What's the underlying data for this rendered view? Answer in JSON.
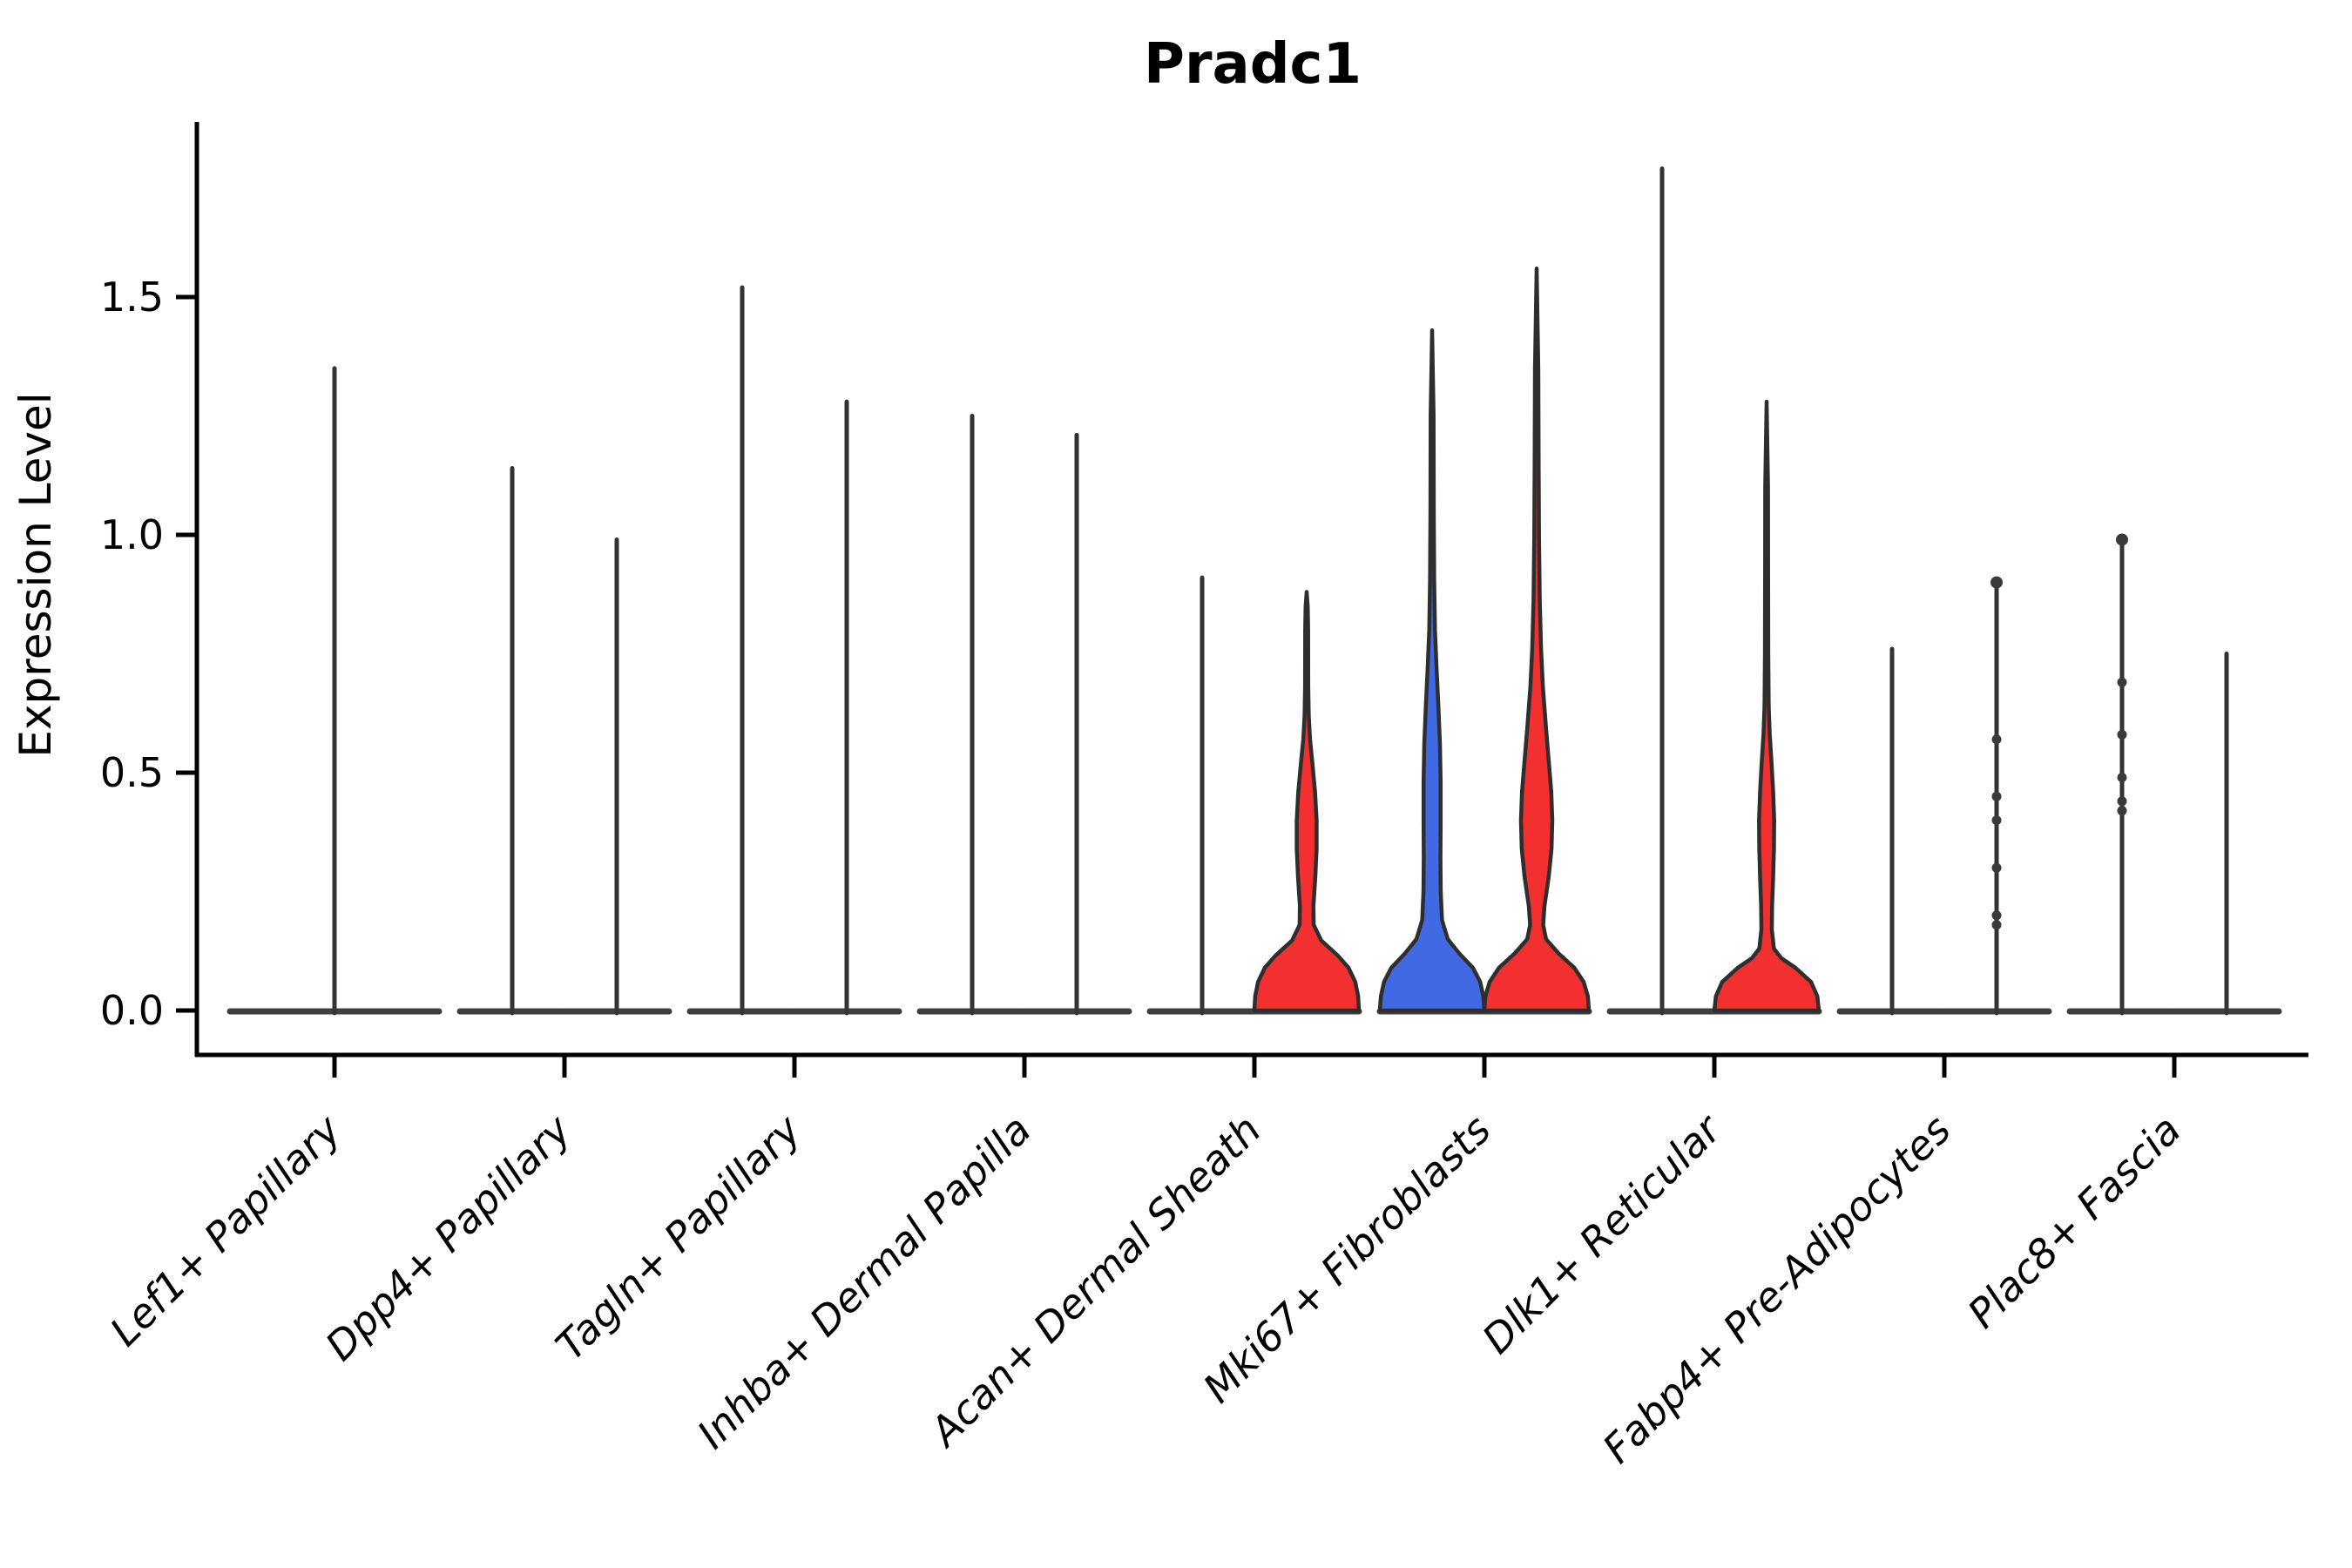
{
  "page": {
    "background": "#FFFFFF"
  },
  "chart_data": {
    "type": "violin",
    "title": "Pradc1",
    "ylabel": "Expression Level",
    "xlabel": "",
    "grid": false,
    "legend_position": "none",
    "ytick_labels": [
      "0.0",
      "0.5",
      "1.0",
      "1.5"
    ],
    "ytick_values": [
      0,
      0.5,
      1.0,
      1.5
    ],
    "ylim": [
      -0.09,
      1.87
    ],
    "categories": [
      "Lef1+ Papillary",
      "Dpp4+ Papillary",
      "Tagln+ Papillary",
      "Inhba+ Dermal Papilla",
      "Acan+ Dermal Sheath",
      "Mki67+ Fibroblasts",
      "Dlk1+ Reticular",
      "Fabp4+ Pre-Adipocytes",
      "Plac8+ Fascia"
    ],
    "colors": {
      "red_fill": "#F23030",
      "blue_fill": "#4169E1",
      "violin_edge": "#2E2E2E",
      "spike_line": "#333333",
      "base_line": "#3F3F3F",
      "axis": "#000000",
      "point": "#3A3A3A"
    },
    "violins": [
      {
        "category": "Lef1+ Papillary",
        "side": "center",
        "style": "spike",
        "max": 1.35
      },
      {
        "category": "Dpp4+ Papillary",
        "side": "left",
        "style": "spike",
        "max": 1.14
      },
      {
        "category": "Dpp4+ Papillary",
        "side": "right",
        "style": "spike",
        "max": 0.99
      },
      {
        "category": "Tagln+ Papillary",
        "side": "left",
        "style": "spike",
        "max": 1.52
      },
      {
        "category": "Tagln+ Papillary",
        "side": "right",
        "style": "spike",
        "max": 1.28
      },
      {
        "category": "Inhba+ Dermal Papilla",
        "side": "left",
        "style": "spike",
        "max": 1.25
      },
      {
        "category": "Inhba+ Dermal Papilla",
        "side": "right",
        "style": "spike",
        "max": 1.21
      },
      {
        "category": "Acan+ Dermal Sheath",
        "side": "left",
        "style": "spike",
        "max": 0.91
      },
      {
        "category": "Acan+ Dermal Sheath",
        "side": "right",
        "style": "filled",
        "color": "red",
        "max": 0.88,
        "profile": [
          [
            0,
            1.0
          ],
          [
            0.03,
            0.985
          ],
          [
            0.06,
            0.93
          ],
          [
            0.09,
            0.8
          ],
          [
            0.115,
            0.6
          ],
          [
            0.147,
            0.28
          ],
          [
            0.18,
            0.135
          ],
          [
            0.22,
            0.13
          ],
          [
            0.28,
            0.165
          ],
          [
            0.34,
            0.19
          ],
          [
            0.4,
            0.19
          ],
          [
            0.46,
            0.16
          ],
          [
            0.52,
            0.11
          ],
          [
            0.57,
            0.065
          ],
          [
            0.62,
            0.04
          ],
          [
            0.68,
            0.03
          ],
          [
            0.8,
            0.028
          ],
          [
            0.85,
            0.02
          ],
          [
            0.88,
            0
          ]
        ]
      },
      {
        "category": "Mki67+ Fibroblasts",
        "side": "left",
        "style": "filled",
        "color": "blue",
        "max": 1.43,
        "profile": [
          [
            0,
            1.0
          ],
          [
            0.03,
            0.98
          ],
          [
            0.06,
            0.92
          ],
          [
            0.09,
            0.78
          ],
          [
            0.12,
            0.52
          ],
          [
            0.15,
            0.3
          ],
          [
            0.19,
            0.19
          ],
          [
            0.25,
            0.165
          ],
          [
            0.32,
            0.16
          ],
          [
            0.4,
            0.163
          ],
          [
            0.48,
            0.163
          ],
          [
            0.56,
            0.15
          ],
          [
            0.64,
            0.12
          ],
          [
            0.72,
            0.085
          ],
          [
            0.8,
            0.055
          ],
          [
            0.9,
            0.04
          ],
          [
            1.05,
            0.032
          ],
          [
            1.25,
            0.028
          ],
          [
            1.43,
            0
          ]
        ]
      },
      {
        "category": "Mki67+ Fibroblasts",
        "side": "right",
        "style": "filled",
        "color": "red",
        "max": 1.56,
        "profile": [
          [
            0,
            1.0
          ],
          [
            0.03,
            0.98
          ],
          [
            0.06,
            0.9
          ],
          [
            0.09,
            0.72
          ],
          [
            0.12,
            0.42
          ],
          [
            0.15,
            0.18
          ],
          [
            0.18,
            0.125
          ],
          [
            0.22,
            0.15
          ],
          [
            0.28,
            0.23
          ],
          [
            0.34,
            0.285
          ],
          [
            0.4,
            0.3
          ],
          [
            0.46,
            0.28
          ],
          [
            0.52,
            0.235
          ],
          [
            0.6,
            0.175
          ],
          [
            0.68,
            0.12
          ],
          [
            0.76,
            0.085
          ],
          [
            0.86,
            0.06
          ],
          [
            1.0,
            0.045
          ],
          [
            1.15,
            0.038
          ],
          [
            1.35,
            0.032
          ],
          [
            1.56,
            0
          ]
        ]
      },
      {
        "category": "Dlk1+ Reticular",
        "side": "left",
        "style": "spike",
        "max": 1.77
      },
      {
        "category": "Dlk1+ Reticular",
        "side": "right",
        "style": "filled",
        "color": "red",
        "max": 1.28,
        "profile": [
          [
            0,
            1.0
          ],
          [
            0.03,
            0.97
          ],
          [
            0.06,
            0.85
          ],
          [
            0.09,
            0.55
          ],
          [
            0.11,
            0.28
          ],
          [
            0.13,
            0.14
          ],
          [
            0.17,
            0.1
          ],
          [
            0.22,
            0.105
          ],
          [
            0.28,
            0.125
          ],
          [
            0.34,
            0.14
          ],
          [
            0.4,
            0.145
          ],
          [
            0.46,
            0.125
          ],
          [
            0.52,
            0.095
          ],
          [
            0.58,
            0.06
          ],
          [
            0.64,
            0.04
          ],
          [
            0.75,
            0.032
          ],
          [
            0.95,
            0.028
          ],
          [
            1.1,
            0.026
          ],
          [
            1.28,
            0
          ]
        ]
      },
      {
        "category": "Fabp4+ Pre-Adipocytes",
        "side": "left",
        "style": "spike",
        "max": 0.76
      },
      {
        "category": "Fabp4+ Pre-Adipocytes",
        "side": "right",
        "style": "spike",
        "max": 0.9,
        "cap": true,
        "points": [
          0.57,
          0.45,
          0.4,
          0.3,
          0.2,
          0.18
        ]
      },
      {
        "category": "Plac8+ Fascia",
        "side": "left",
        "style": "spike",
        "max": 0.99,
        "cap": true,
        "points": [
          0.69,
          0.58,
          0.49,
          0.44,
          0.42
        ]
      },
      {
        "category": "Plac8+ Fascia",
        "side": "right",
        "style": "spike",
        "max": 0.75
      }
    ]
  }
}
